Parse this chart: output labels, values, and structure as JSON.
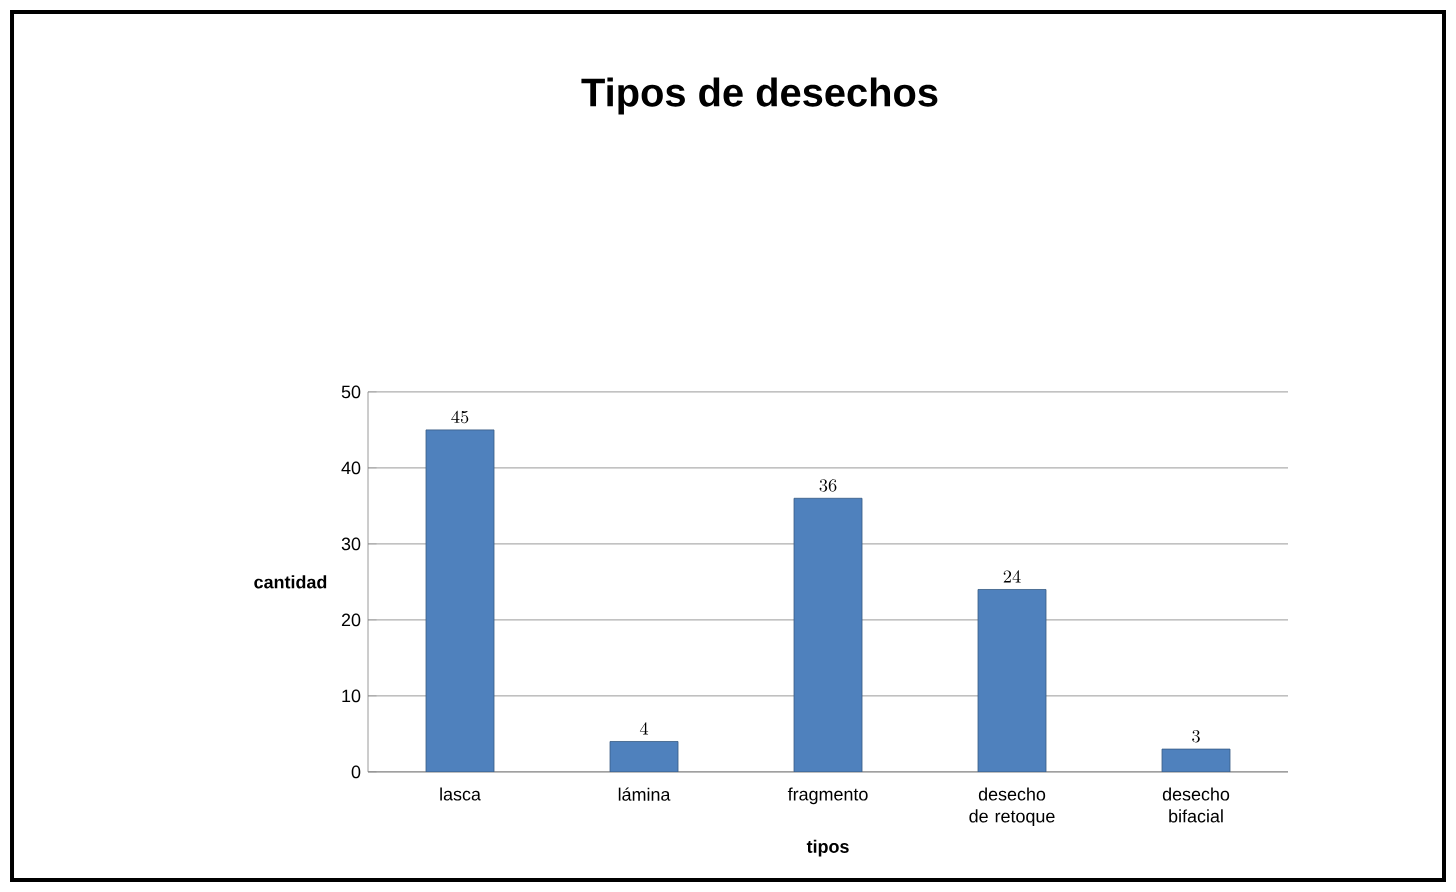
{
  "chart_data": {
    "type": "bar",
    "title": "Tipos de desechos",
    "xlabel": "tipos",
    "ylabel": "cantidad",
    "categories": [
      "lasca",
      "lámina",
      "fragmento",
      "desecho de retoque",
      "desecho bifacial"
    ],
    "values": [
      45,
      4,
      36,
      24,
      3
    ],
    "color": "#4f81bd",
    "ylim": [
      0,
      50
    ],
    "yticks": [
      0,
      10,
      20,
      30,
      40,
      50
    ],
    "grid": "y",
    "data_labels": true
  }
}
